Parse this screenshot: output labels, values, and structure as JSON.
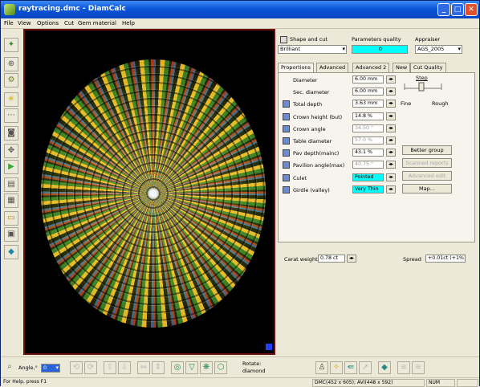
{
  "window": {
    "title": "raytracing.dmc - DiamCalc",
    "min": "_",
    "max": "□",
    "close": "✕"
  },
  "menu": [
    "File",
    "View",
    "Options",
    "Cut",
    "Gem material",
    "Help"
  ],
  "top": {
    "shape_label": "Shape and cut",
    "shape_value": "Brilliant",
    "quality_label": "Parameters quality",
    "quality_value": "0",
    "appraiser_label": "Appraiser",
    "appraiser_value": "AGS_2005"
  },
  "tabs": [
    "Proportions",
    "Advanced",
    "Advanced 2",
    "New",
    "Cut Quality"
  ],
  "params": [
    {
      "label": "Diameter",
      "value": "6.00 mm",
      "icon": false,
      "disabled": false,
      "highlight": false
    },
    {
      "label": "Sec. diameter",
      "value": "6.00 mm",
      "icon": false,
      "disabled": false,
      "highlight": false
    },
    {
      "label": "Total depth",
      "value": "3.63 mm",
      "icon": true,
      "disabled": false,
      "highlight": false
    },
    {
      "label": "Crown height (but)",
      "value": "14.8 %",
      "icon": true,
      "disabled": false,
      "highlight": false
    },
    {
      "label": "Crown angle",
      "value": "34.50 °",
      "icon": true,
      "disabled": true,
      "highlight": false
    },
    {
      "label": "Table diameter",
      "value": "57.0 %",
      "icon": true,
      "disabled": true,
      "highlight": false
    },
    {
      "label": "Pav depth(mainc)",
      "value": "43.1 %",
      "icon": true,
      "disabled": false,
      "highlight": false
    },
    {
      "label": "Pavilion angle(max)",
      "value": "40.75 °",
      "icon": true,
      "disabled": true,
      "highlight": false
    },
    {
      "label": "Culet",
      "value": "Pointed",
      "icon": true,
      "disabled": false,
      "highlight": true
    },
    {
      "label": "Girdle (valley)",
      "value": "Very Thin",
      "icon": true,
      "disabled": false,
      "highlight": true
    }
  ],
  "step": {
    "label": "Step",
    "fine": "Fine",
    "rough": "Rough"
  },
  "buttons": {
    "better_group": "Better group",
    "scanned_reports": "Scanned reports",
    "advanced_edit": "Advanced edit",
    "map": "Map..."
  },
  "carat": {
    "label": "Carat weight",
    "value": "0.78 ct",
    "spread_label": "Spread",
    "spread_value": "+0.01ct (+1%)"
  },
  "bottombar": {
    "angle_label": "Angle,°",
    "angle_value": "0",
    "rotate_label": "Rotate:",
    "rotate_value": "diamond"
  },
  "status": {
    "help": "For Help, press F1",
    "coords": "DMC(452 x 605); AVI(448 x 592)",
    "num": "NUM"
  },
  "icons": {
    "app": "diamond-app-icon",
    "magnify": "magnifier-icon"
  }
}
